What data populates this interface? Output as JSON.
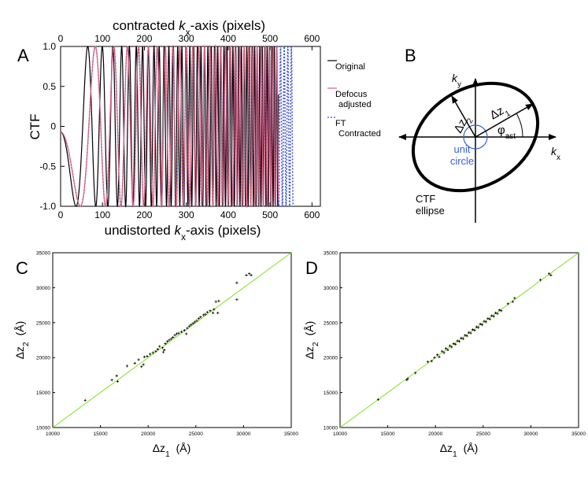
{
  "panel_labels": {
    "a": "A",
    "b": "B",
    "c": "C",
    "d": "D"
  },
  "colors": {
    "original": "#000000",
    "defocus": "#e0607e",
    "ft": "#3a4fd8",
    "fit": "#7ee21f",
    "unit_circle": "#3a5fd8"
  },
  "chart_data": [
    {
      "panel": "A",
      "type": "line",
      "xlabel_prefix": "undistorted ",
      "xlabel_var": "k",
      "xlabel_sub": "x",
      "xlabel_suffix": "-axis (pixels)",
      "x2label_prefix": "contracted ",
      "x2label_var": "k",
      "x2label_sub": "x",
      "x2label_suffix": "-axis (pixels)",
      "ylabel": "CTF",
      "xlim": [
        0,
        600
      ],
      "ylim": [
        -1,
        1
      ],
      "xticks": [
        "0",
        "100",
        "200",
        "300",
        "400",
        "500",
        "600"
      ],
      "x2ticks": [
        "0",
        "100",
        "200",
        "300",
        "400",
        "500",
        "600"
      ],
      "yticks": [
        "1.0",
        "0.5",
        "0",
        "-0.5",
        "-1.0"
      ],
      "legend": {
        "placement": "right",
        "entries": [
          "Original",
          "Defocus adjusted",
          "FT Contracted"
        ]
      },
      "series": [
        {
          "name": "Original",
          "color": "#000000",
          "style": "solid",
          "x_end": 520,
          "phase_coef": 0.001105,
          "phase_offset": 1.5708
        },
        {
          "name": "Defocus adjusted",
          "color": "#e0607e",
          "style": "solid",
          "x_end": 520,
          "phase_coef": 0.000678,
          "phase_offset": 1.5708
        },
        {
          "name": "FT Contracted",
          "color": "#3a4fd8",
          "style": "dotted",
          "x_end": 555,
          "phase_coef": 0.000678,
          "phase_offset": 1.5708
        }
      ]
    },
    {
      "panel": "C",
      "type": "scatter",
      "xlabel_var": "Δz",
      "xlabel_sub": "1",
      "xlabel_unit": "(Å)",
      "ylabel_var": "Δz",
      "ylabel_sub": "2",
      "ylabel_unit": "(Å)",
      "xlim": [
        10000,
        35000
      ],
      "ylim": [
        10000,
        35000
      ],
      "xticks": [
        "10000",
        "15000",
        "20000",
        "25000",
        "30000",
        "35000"
      ],
      "yticks": [
        "10000",
        "15000",
        "20000",
        "25000",
        "30000",
        "35000"
      ],
      "fit_line": [
        [
          10000,
          10000
        ],
        [
          35000,
          35000
        ]
      ],
      "points": [
        [
          13400,
          13900
        ],
        [
          16200,
          16800
        ],
        [
          16700,
          17400
        ],
        [
          16800,
          16600
        ],
        [
          17800,
          18800
        ],
        [
          18600,
          19200
        ],
        [
          19000,
          19700
        ],
        [
          19300,
          18700
        ],
        [
          19500,
          19000
        ],
        [
          19600,
          20100
        ],
        [
          19900,
          20200
        ],
        [
          20200,
          20500
        ],
        [
          20500,
          20700
        ],
        [
          20800,
          20900
        ],
        [
          21000,
          21200
        ],
        [
          21200,
          21600
        ],
        [
          21500,
          21400
        ],
        [
          21600,
          20800
        ],
        [
          21700,
          21100
        ],
        [
          21800,
          22000
        ],
        [
          22000,
          22300
        ],
        [
          22200,
          22500
        ],
        [
          22400,
          22700
        ],
        [
          22600,
          22900
        ],
        [
          22800,
          23200
        ],
        [
          23000,
          23400
        ],
        [
          23200,
          23500
        ],
        [
          23500,
          23700
        ],
        [
          23800,
          23900
        ],
        [
          24000,
          23400
        ],
        [
          24100,
          24200
        ],
        [
          24300,
          24500
        ],
        [
          24500,
          24700
        ],
        [
          24700,
          24900
        ],
        [
          24900,
          25100
        ],
        [
          25100,
          25300
        ],
        [
          25300,
          25600
        ],
        [
          25500,
          25800
        ],
        [
          25800,
          26100
        ],
        [
          26000,
          26200
        ],
        [
          26200,
          26500
        ],
        [
          26500,
          26700
        ],
        [
          26800,
          26400
        ],
        [
          26900,
          26900
        ],
        [
          27100,
          28000
        ],
        [
          27400,
          28100
        ],
        [
          27300,
          26400
        ],
        [
          29300,
          28300
        ],
        [
          29300,
          30700
        ],
        [
          30300,
          31800
        ],
        [
          30600,
          32000
        ],
        [
          30800,
          31800
        ]
      ]
    },
    {
      "panel": "D",
      "type": "scatter",
      "xlabel_var": "Δz",
      "xlabel_sub": "1",
      "xlabel_unit": "(Å)",
      "ylabel_var": "Δz",
      "ylabel_sub": "2",
      "ylabel_unit": "(Å)",
      "xlim": [
        10000,
        35000
      ],
      "ylim": [
        10000,
        35000
      ],
      "xticks": [
        "10000",
        "15000",
        "20000",
        "25000",
        "30000",
        "35000"
      ],
      "yticks": [
        "10000",
        "15000",
        "20000",
        "25000",
        "30000",
        "35000"
      ],
      "fit_line": [
        [
          10000,
          10000
        ],
        [
          35000,
          35000
        ]
      ],
      "points": [
        [
          14000,
          14000
        ],
        [
          17000,
          16800
        ],
        [
          17100,
          17000
        ],
        [
          17900,
          17800
        ],
        [
          19200,
          19400
        ],
        [
          19600,
          19500
        ],
        [
          19900,
          20000
        ],
        [
          20200,
          20400
        ],
        [
          20400,
          20100
        ],
        [
          20700,
          20900
        ],
        [
          20900,
          20700
        ],
        [
          21100,
          21300
        ],
        [
          21300,
          21100
        ],
        [
          21500,
          21700
        ],
        [
          21700,
          21500
        ],
        [
          21900,
          22000
        ],
        [
          22100,
          21900
        ],
        [
          22300,
          22400
        ],
        [
          22500,
          22300
        ],
        [
          22700,
          22800
        ],
        [
          22900,
          22700
        ],
        [
          23100,
          23200
        ],
        [
          23300,
          23100
        ],
        [
          23500,
          23600
        ],
        [
          23700,
          23500
        ],
        [
          23900,
          24000
        ],
        [
          24100,
          23900
        ],
        [
          24300,
          24400
        ],
        [
          24500,
          24300
        ],
        [
          24700,
          24800
        ],
        [
          24900,
          24700
        ],
        [
          25100,
          25200
        ],
        [
          25300,
          25100
        ],
        [
          25500,
          25600
        ],
        [
          25700,
          25500
        ],
        [
          25900,
          26000
        ],
        [
          26100,
          25900
        ],
        [
          26300,
          26400
        ],
        [
          26500,
          26300
        ],
        [
          26700,
          26800
        ],
        [
          26900,
          26700
        ],
        [
          27600,
          27700
        ],
        [
          28100,
          28000
        ],
        [
          28300,
          28500
        ],
        [
          31000,
          31100
        ],
        [
          31900,
          32000
        ],
        [
          32100,
          31800
        ]
      ]
    }
  ],
  "diagram": {
    "ky_var": "k",
    "ky_sub": "y",
    "kx_var": "k",
    "kx_sub": "x",
    "dz1_var": "Δz",
    "dz1_sub": "1",
    "dz2_var": "Δz",
    "dz2_sub": "2",
    "phi_var": "φ",
    "phi_sub": "ast",
    "unit_circle_line1": "unit",
    "unit_circle_line2": "circle",
    "ellipse_line1": "CTF",
    "ellipse_line2": "ellipse"
  }
}
